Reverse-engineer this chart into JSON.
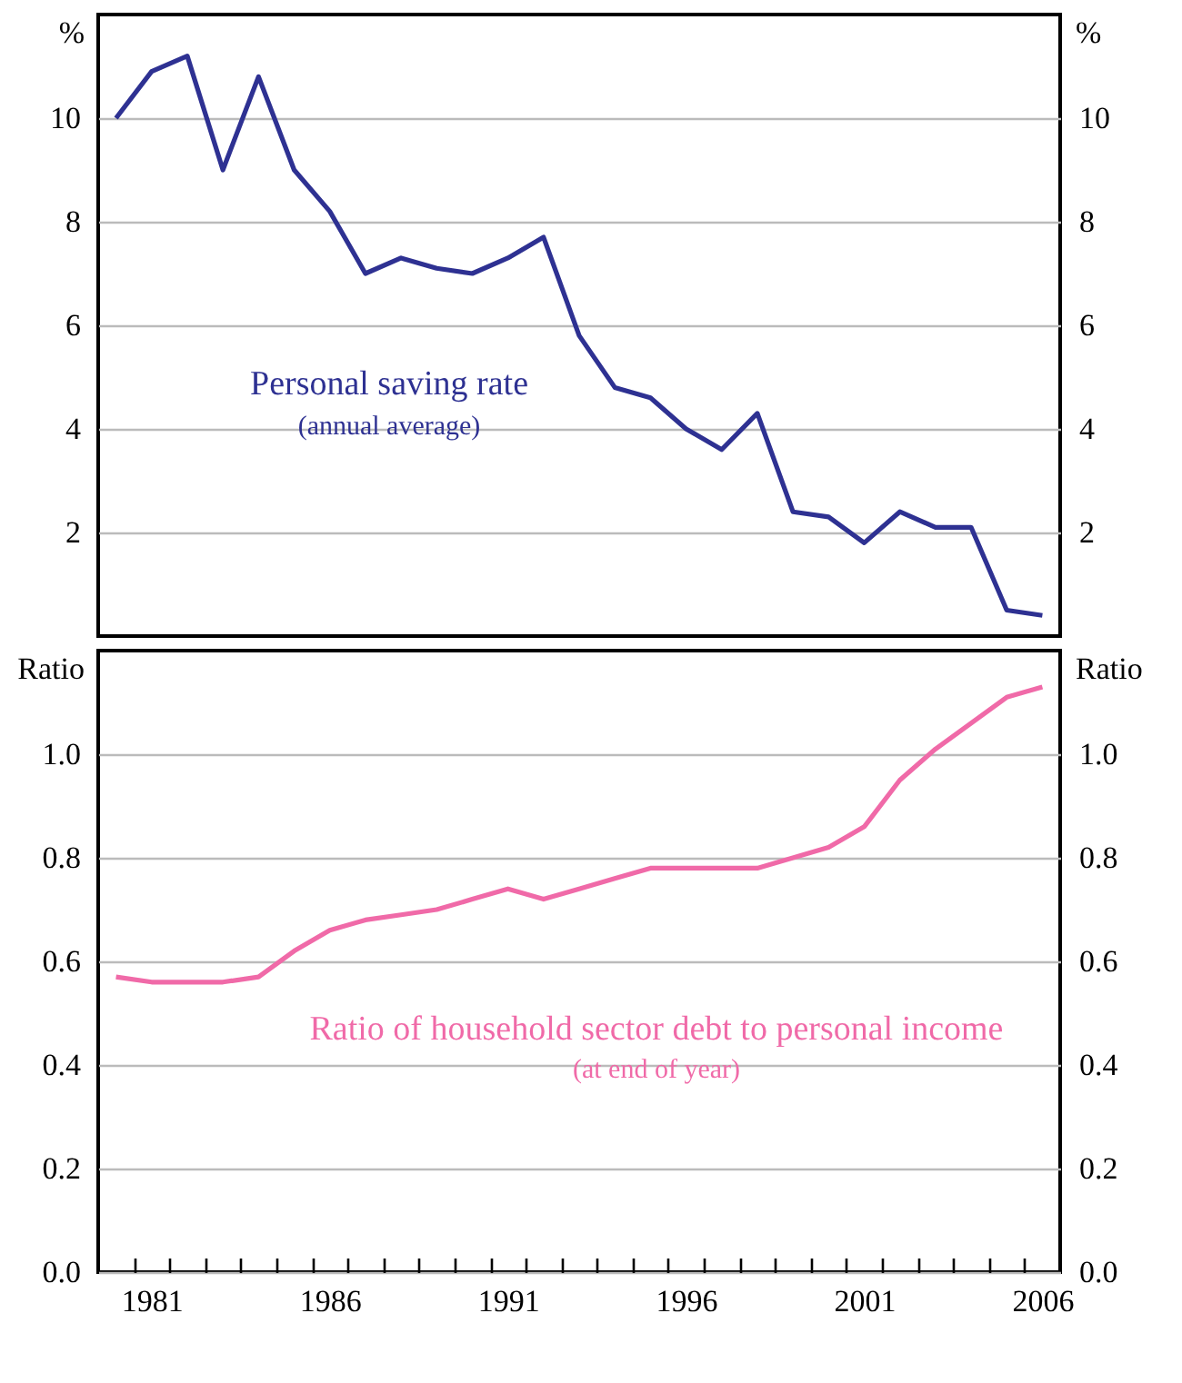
{
  "chart_data": [
    {
      "type": "line",
      "x": [
        1980,
        1981,
        1982,
        1983,
        1984,
        1985,
        1986,
        1987,
        1988,
        1989,
        1990,
        1991,
        1992,
        1993,
        1994,
        1995,
        1996,
        1997,
        1998,
        1999,
        2000,
        2001,
        2002,
        2003,
        2004,
        2005,
        2006
      ],
      "xlim": [
        1979.5,
        2006.5
      ],
      "ylim": [
        0,
        12
      ],
      "yticks": [
        2,
        4,
        6,
        8,
        10
      ],
      "y2lim": [
        0,
        12
      ],
      "y2ticks": [
        2,
        4,
        6,
        8,
        10
      ],
      "ylabel": "%",
      "y2label": "%",
      "grid": "y",
      "tick_labels": "y",
      "series": [
        {
          "name": "Personal saving rate",
          "color": "#2e3192",
          "values": [
            10.0,
            10.9,
            11.2,
            9.0,
            10.8,
            9.0,
            8.2,
            7.0,
            7.3,
            7.1,
            7.0,
            7.3,
            7.7,
            5.8,
            4.8,
            4.6,
            4.0,
            3.6,
            4.3,
            2.4,
            2.3,
            1.8,
            2.4,
            2.1,
            2.1,
            0.5,
            0.4
          ]
        }
      ],
      "annotations": [
        "(annual average)"
      ]
    },
    {
      "type": "line",
      "x": [
        1980,
        1981,
        1982,
        1983,
        1984,
        1985,
        1986,
        1987,
        1988,
        1989,
        1990,
        1991,
        1992,
        1993,
        1994,
        1995,
        1996,
        1997,
        1998,
        1999,
        2000,
        2001,
        2002,
        2003,
        2004,
        2005,
        2006
      ],
      "xlim": [
        1979.5,
        2006.5
      ],
      "xticks": [
        {
          "value": 1980.5,
          "label": null
        },
        {
          "value": 1981,
          "label": "1981"
        },
        {
          "value": 1981.5,
          "label": null
        },
        {
          "value": 1982.5,
          "label": null
        },
        {
          "value": 1983.5,
          "label": null
        },
        {
          "value": 1984.5,
          "label": null
        },
        {
          "value": 1985.5,
          "label": null
        },
        {
          "value": 1986,
          "label": "1986"
        },
        {
          "value": 1986.5,
          "label": null
        },
        {
          "value": 1987.5,
          "label": null
        },
        {
          "value": 1988.5,
          "label": null
        },
        {
          "value": 1989.5,
          "label": null
        },
        {
          "value": 1990.5,
          "label": null
        },
        {
          "value": 1991,
          "label": "1991"
        },
        {
          "value": 1991.5,
          "label": null
        },
        {
          "value": 1992.5,
          "label": null
        },
        {
          "value": 1993.5,
          "label": null
        },
        {
          "value": 1994.5,
          "label": null
        },
        {
          "value": 1995.5,
          "label": null
        },
        {
          "value": 1996,
          "label": "1996"
        },
        {
          "value": 1996.5,
          "label": null
        },
        {
          "value": 1997.5,
          "label": null
        },
        {
          "value": 1998.5,
          "label": null
        },
        {
          "value": 1999.5,
          "label": null
        },
        {
          "value": 2000.5,
          "label": null
        },
        {
          "value": 2001,
          "label": "2001"
        },
        {
          "value": 2001.5,
          "label": null
        },
        {
          "value": 2002.5,
          "label": null
        },
        {
          "value": 2003.5,
          "label": null
        },
        {
          "value": 2004.5,
          "label": null
        },
        {
          "value": 2005.5,
          "label": null
        },
        {
          "value": 2006,
          "label": "2006"
        }
      ],
      "ylim": [
        0,
        1.2
      ],
      "yticks": [
        {
          "value": 0,
          "label": "0.0"
        },
        0.2,
        0.4,
        0.6,
        0.8,
        {
          "value": 1,
          "label": "1.0"
        }
      ],
      "y2lim": [
        0,
        1.2
      ],
      "y2ticks": [
        {
          "value": 0,
          "label": "0.0"
        },
        0.2,
        0.4,
        0.6,
        0.8,
        {
          "value": 1,
          "label": "1.0"
        }
      ],
      "ylabel": "Ratio",
      "y2label": "Ratio",
      "grid": "y",
      "series": [
        {
          "name": "Ratio of household sector debt to personal income",
          "color": "#f06aa8",
          "values": [
            0.57,
            0.56,
            0.56,
            0.56,
            0.57,
            0.62,
            0.66,
            0.68,
            0.69,
            0.7,
            0.72,
            0.74,
            0.72,
            0.74,
            0.76,
            0.78,
            0.78,
            0.78,
            0.78,
            0.8,
            0.82,
            0.86,
            0.95,
            1.01,
            1.06,
            1.11,
            1.13
          ]
        }
      ],
      "annotations": [
        "(at end of year)"
      ]
    }
  ]
}
